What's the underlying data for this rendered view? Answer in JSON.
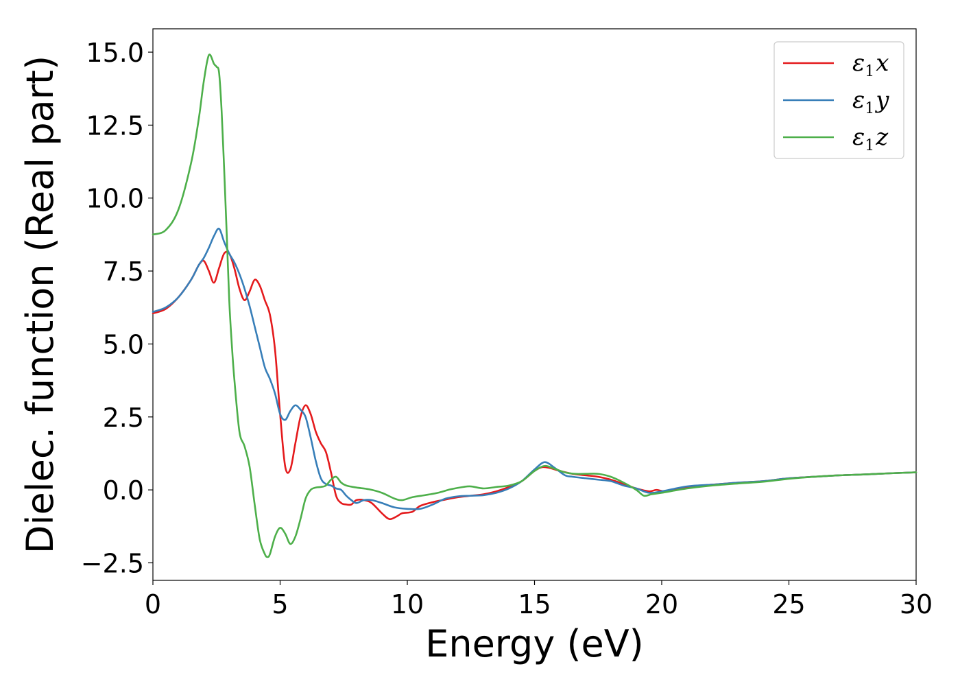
{
  "chart_data": {
    "type": "line",
    "title": "",
    "xlabel": "Energy (eV)",
    "ylabel": "Dielec. function (Real part)",
    "xlim": [
      0,
      30
    ],
    "ylim": [
      -3.1,
      15.8
    ],
    "xticks": [
      0,
      5,
      10,
      15,
      20,
      25,
      30
    ],
    "xtick_labels": [
      "0",
      "5",
      "10",
      "15",
      "20",
      "25",
      "30"
    ],
    "yticks": [
      -2.5,
      0,
      2.5,
      5,
      7.5,
      10,
      12.5,
      15
    ],
    "ytick_labels": [
      "−2.5",
      "0.0",
      "2.5",
      "5.0",
      "7.5",
      "10.0",
      "12.5",
      "15.0"
    ],
    "grid": false,
    "legend_position": "top-right",
    "series": [
      {
        "name": "ε",
        "sub": "1",
        "var": "x",
        "color": "#e41a1c",
        "x": [
          0,
          0.5,
          1.0,
          1.5,
          1.8,
          2.0,
          2.2,
          2.4,
          2.6,
          2.8,
          3.0,
          3.2,
          3.4,
          3.6,
          3.8,
          4.0,
          4.2,
          4.4,
          4.6,
          4.8,
          5.0,
          5.2,
          5.4,
          5.6,
          5.8,
          6.0,
          6.2,
          6.4,
          6.6,
          6.8,
          7.0,
          7.2,
          7.4,
          7.6,
          7.8,
          8.0,
          8.3,
          8.6,
          9.0,
          9.3,
          9.6,
          9.8,
          10.2,
          10.5,
          11.0,
          11.5,
          12.0,
          12.5,
          13.0,
          13.5,
          14.0,
          14.5,
          15.0,
          15.3,
          15.6,
          16.0,
          16.5,
          17.0,
          17.5,
          18.0,
          18.5,
          19.0,
          19.5,
          19.8,
          20.2,
          21.0,
          22.0,
          23.0,
          24.0,
          25.0,
          26.0,
          27.0,
          28.0,
          29.0,
          30.0
        ],
        "values": [
          6.05,
          6.2,
          6.6,
          7.2,
          7.7,
          7.85,
          7.5,
          7.1,
          7.6,
          8.1,
          8.1,
          7.6,
          6.9,
          6.5,
          6.8,
          7.2,
          7.0,
          6.5,
          6.0,
          4.8,
          2.6,
          0.8,
          0.7,
          1.6,
          2.5,
          2.9,
          2.6,
          2.0,
          1.6,
          1.3,
          0.6,
          -0.2,
          -0.45,
          -0.5,
          -0.5,
          -0.35,
          -0.35,
          -0.45,
          -0.8,
          -1.0,
          -0.9,
          -0.8,
          -0.75,
          -0.55,
          -0.42,
          -0.33,
          -0.25,
          -0.2,
          -0.15,
          -0.05,
          0.1,
          0.3,
          0.65,
          0.78,
          0.75,
          0.65,
          0.55,
          0.5,
          0.45,
          0.35,
          0.2,
          0.05,
          -0.05,
          0.0,
          -0.05,
          0.1,
          0.18,
          0.25,
          0.3,
          0.4,
          0.45,
          0.5,
          0.53,
          0.57,
          0.6
        ]
      },
      {
        "name": "ε",
        "sub": "1",
        "var": "y",
        "color": "#377eb8",
        "x": [
          0,
          0.5,
          1.0,
          1.5,
          1.8,
          2.0,
          2.2,
          2.4,
          2.6,
          2.8,
          3.0,
          3.2,
          3.4,
          3.6,
          3.8,
          4.0,
          4.2,
          4.4,
          4.6,
          4.8,
          5.0,
          5.2,
          5.4,
          5.6,
          5.8,
          6.0,
          6.2,
          6.4,
          6.6,
          6.8,
          7.0,
          7.2,
          7.4,
          7.6,
          7.8,
          8.0,
          8.3,
          8.6,
          9.0,
          9.5,
          10.0,
          10.5,
          11.0,
          11.5,
          12.0,
          12.5,
          13.0,
          13.5,
          14.0,
          14.5,
          15.0,
          15.4,
          15.8,
          16.2,
          16.5,
          17.0,
          17.5,
          18.0,
          18.5,
          19.0,
          19.5,
          20.0,
          21.0,
          22.0,
          23.0,
          24.0,
          25.0,
          26.0,
          27.0,
          28.0,
          29.0,
          30.0
        ],
        "values": [
          6.1,
          6.25,
          6.6,
          7.2,
          7.7,
          7.95,
          8.3,
          8.7,
          8.95,
          8.5,
          8.1,
          7.8,
          7.4,
          6.9,
          6.3,
          5.6,
          4.9,
          4.2,
          3.8,
          3.3,
          2.6,
          2.4,
          2.7,
          2.9,
          2.75,
          2.5,
          1.8,
          1.0,
          0.4,
          0.2,
          0.15,
          0.05,
          0.0,
          -0.2,
          -0.35,
          -0.45,
          -0.35,
          -0.35,
          -0.45,
          -0.6,
          -0.65,
          -0.65,
          -0.5,
          -0.3,
          -0.22,
          -0.2,
          -0.18,
          -0.1,
          0.05,
          0.3,
          0.7,
          0.95,
          0.75,
          0.5,
          0.45,
          0.4,
          0.35,
          0.3,
          0.15,
          0.05,
          -0.1,
          -0.05,
          0.12,
          0.18,
          0.25,
          0.3,
          0.4,
          0.45,
          0.5,
          0.53,
          0.57,
          0.6
        ]
      },
      {
        "name": "ε",
        "sub": "1",
        "var": "z",
        "color": "#4daf4a",
        "x": [
          0,
          0.5,
          1.0,
          1.5,
          1.8,
          2.0,
          2.2,
          2.4,
          2.5,
          2.6,
          2.7,
          2.8,
          2.9,
          3.0,
          3.1,
          3.2,
          3.4,
          3.6,
          3.8,
          4.0,
          4.2,
          4.4,
          4.5,
          4.6,
          4.8,
          5.0,
          5.2,
          5.4,
          5.6,
          5.8,
          6.0,
          6.2,
          6.4,
          6.6,
          6.8,
          7.0,
          7.2,
          7.4,
          7.6,
          8.0,
          8.5,
          9.0,
          9.5,
          9.8,
          10.2,
          10.7,
          11.2,
          11.7,
          12.2,
          12.5,
          13.0,
          13.5,
          14.0,
          14.5,
          15.0,
          15.4,
          15.8,
          16.2,
          16.6,
          17.0,
          17.5,
          18.0,
          18.5,
          19.0,
          19.3,
          19.6,
          20.0,
          21.0,
          22.0,
          23.0,
          24.0,
          25.0,
          26.0,
          27.0,
          28.0,
          29.0,
          30.0
        ],
        "values": [
          8.75,
          8.9,
          9.6,
          11.2,
          12.7,
          14.0,
          14.9,
          14.6,
          14.5,
          14.3,
          13.0,
          11.0,
          8.8,
          6.5,
          5.0,
          3.8,
          2.0,
          1.5,
          0.8,
          -0.5,
          -1.7,
          -2.2,
          -2.3,
          -2.2,
          -1.6,
          -1.3,
          -1.5,
          -1.85,
          -1.6,
          -1.0,
          -0.3,
          0.0,
          0.08,
          0.1,
          0.15,
          0.35,
          0.45,
          0.25,
          0.15,
          0.08,
          0.02,
          -0.1,
          -0.3,
          -0.35,
          -0.25,
          -0.18,
          -0.1,
          0.02,
          0.1,
          0.12,
          0.05,
          0.1,
          0.15,
          0.3,
          0.65,
          0.82,
          0.72,
          0.6,
          0.55,
          0.55,
          0.55,
          0.45,
          0.25,
          0.0,
          -0.2,
          -0.15,
          -0.1,
          0.05,
          0.15,
          0.22,
          0.28,
          0.38,
          0.45,
          0.5,
          0.53,
          0.57,
          0.6
        ]
      }
    ]
  }
}
